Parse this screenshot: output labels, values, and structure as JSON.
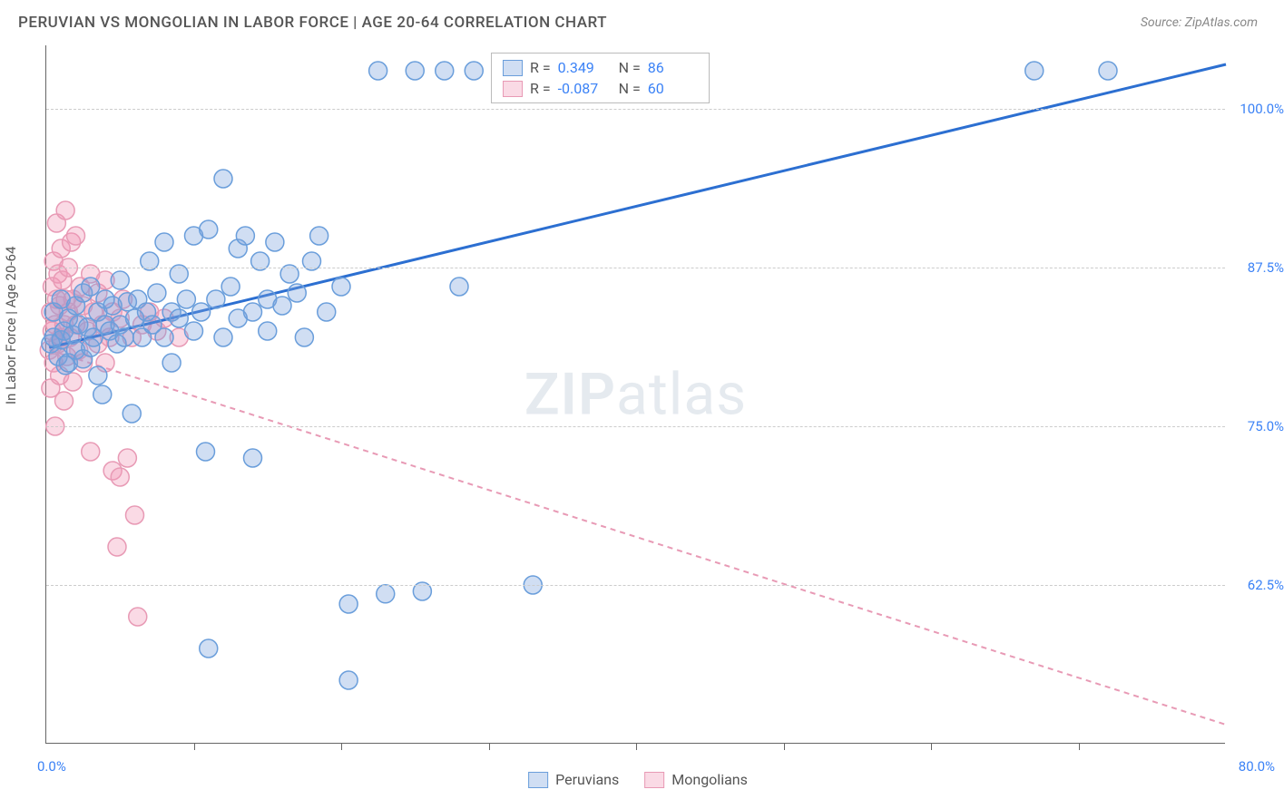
{
  "title": "PERUVIAN VS MONGOLIAN IN LABOR FORCE | AGE 20-64 CORRELATION CHART",
  "source": "Source: ZipAtlas.com",
  "axis_title_y": "In Labor Force | Age 20-64",
  "watermark": {
    "bold": "ZIP",
    "rest": "atlas"
  },
  "chart": {
    "type": "scatter",
    "background_color": "#ffffff",
    "grid_color": "#cccccc",
    "axis_color": "#666666",
    "xlim": [
      0,
      80
    ],
    "ylim": [
      50,
      105
    ],
    "x_label_min": "0.0%",
    "x_label_max": "80.0%",
    "x_ticks": [
      10,
      20,
      30,
      40,
      50,
      60,
      70
    ],
    "y_gridlines": [
      {
        "v": 62.5,
        "label": "62.5%"
      },
      {
        "v": 75.0,
        "label": "75.0%"
      },
      {
        "v": 87.5,
        "label": "87.5%"
      },
      {
        "v": 100.0,
        "label": "100.0%"
      }
    ],
    "marker_radius": 10,
    "marker_stroke_width": 1.5,
    "series": [
      {
        "name": "Peruvians",
        "fill": "rgba(120,160,220,0.35)",
        "stroke": "#6a9edb",
        "trend": {
          "color": "#2c6fd1",
          "width": 3,
          "dash": null,
          "x1": 0.2,
          "y1": 81.2,
          "x2": 80,
          "y2": 103.5
        },
        "stats": {
          "R": "0.349",
          "N": "86"
        },
        "points": [
          [
            0.3,
            81.5
          ],
          [
            0.5,
            82.0
          ],
          [
            0.5,
            84.0
          ],
          [
            0.8,
            80.5
          ],
          [
            1.0,
            81.8
          ],
          [
            1.0,
            85.0
          ],
          [
            1.2,
            82.5
          ],
          [
            1.3,
            79.8
          ],
          [
            1.5,
            83.5
          ],
          [
            1.5,
            80.0
          ],
          [
            1.8,
            82.2
          ],
          [
            2.0,
            84.5
          ],
          [
            2.0,
            81.0
          ],
          [
            2.2,
            83.0
          ],
          [
            2.5,
            85.5
          ],
          [
            2.5,
            80.3
          ],
          [
            2.8,
            82.8
          ],
          [
            3.0,
            86.0
          ],
          [
            3.0,
            81.2
          ],
          [
            3.2,
            82.0
          ],
          [
            3.5,
            84.0
          ],
          [
            3.5,
            79.0
          ],
          [
            3.8,
            77.5
          ],
          [
            4.0,
            83.0
          ],
          [
            4.0,
            85.0
          ],
          [
            4.3,
            82.5
          ],
          [
            4.5,
            84.5
          ],
          [
            4.8,
            81.5
          ],
          [
            5.0,
            86.5
          ],
          [
            5.0,
            83.0
          ],
          [
            5.3,
            82.0
          ],
          [
            5.5,
            84.8
          ],
          [
            5.8,
            76.0
          ],
          [
            6.0,
            83.5
          ],
          [
            6.2,
            85.0
          ],
          [
            6.5,
            82.0
          ],
          [
            6.8,
            84.0
          ],
          [
            7.0,
            88.0
          ],
          [
            7.2,
            83.0
          ],
          [
            7.5,
            85.5
          ],
          [
            8.0,
            82.0
          ],
          [
            8.0,
            89.5
          ],
          [
            8.5,
            84.0
          ],
          [
            8.5,
            80.0
          ],
          [
            9.0,
            87.0
          ],
          [
            9.0,
            83.5
          ],
          [
            9.5,
            85.0
          ],
          [
            10.0,
            82.5
          ],
          [
            10.0,
            90.0
          ],
          [
            10.5,
            84.0
          ],
          [
            10.8,
            73.0
          ],
          [
            11.0,
            57.5
          ],
          [
            11.0,
            90.5
          ],
          [
            11.5,
            85.0
          ],
          [
            12.0,
            82.0
          ],
          [
            12.0,
            94.5
          ],
          [
            12.5,
            86.0
          ],
          [
            13.0,
            83.5
          ],
          [
            13.0,
            89.0
          ],
          [
            13.5,
            90.0
          ],
          [
            14.0,
            84.0
          ],
          [
            14.0,
            72.5
          ],
          [
            14.5,
            88.0
          ],
          [
            15.0,
            85.0
          ],
          [
            15.0,
            82.5
          ],
          [
            15.5,
            89.5
          ],
          [
            16.0,
            84.5
          ],
          [
            16.5,
            87.0
          ],
          [
            17.0,
            85.5
          ],
          [
            17.5,
            82.0
          ],
          [
            18.0,
            88.0
          ],
          [
            18.5,
            90.0
          ],
          [
            19.0,
            84.0
          ],
          [
            20.0,
            86.0
          ],
          [
            20.5,
            61.0
          ],
          [
            20.5,
            55.0
          ],
          [
            22.5,
            103.0
          ],
          [
            23.0,
            61.8
          ],
          [
            25.0,
            103.0
          ],
          [
            25.5,
            62.0
          ],
          [
            27.0,
            103.0
          ],
          [
            28.0,
            86.0
          ],
          [
            29.0,
            103.0
          ],
          [
            33.0,
            62.5
          ],
          [
            67.0,
            103.0
          ],
          [
            72.0,
            103.0
          ]
        ]
      },
      {
        "name": "Mongolians",
        "fill": "rgba(240,150,180,0.35)",
        "stroke": "#e89ab5",
        "trend": {
          "color": "#e89ab5",
          "width": 2,
          "dash": "6,5",
          "x1": 0.2,
          "y1": 81.0,
          "x2": 80,
          "y2": 51.5
        },
        "stats": {
          "R": "-0.087",
          "N": "60"
        },
        "points": [
          [
            0.2,
            81.0
          ],
          [
            0.3,
            84.0
          ],
          [
            0.3,
            78.0
          ],
          [
            0.4,
            82.5
          ],
          [
            0.4,
            86.0
          ],
          [
            0.5,
            80.0
          ],
          [
            0.5,
            88.0
          ],
          [
            0.6,
            83.0
          ],
          [
            0.6,
            75.0
          ],
          [
            0.7,
            85.0
          ],
          [
            0.7,
            91.0
          ],
          [
            0.8,
            81.5
          ],
          [
            0.8,
            87.0
          ],
          [
            0.9,
            79.0
          ],
          [
            0.9,
            84.5
          ],
          [
            1.0,
            82.0
          ],
          [
            1.0,
            89.0
          ],
          [
            1.1,
            86.5
          ],
          [
            1.2,
            83.0
          ],
          [
            1.2,
            77.0
          ],
          [
            1.3,
            85.0
          ],
          [
            1.3,
            92.0
          ],
          [
            1.4,
            80.5
          ],
          [
            1.5,
            84.0
          ],
          [
            1.5,
            87.5
          ],
          [
            1.6,
            82.0
          ],
          [
            1.7,
            89.5
          ],
          [
            1.8,
            85.0
          ],
          [
            1.8,
            78.5
          ],
          [
            2.0,
            83.0
          ],
          [
            2.0,
            90.0
          ],
          [
            2.2,
            81.0
          ],
          [
            2.3,
            86.0
          ],
          [
            2.5,
            84.5
          ],
          [
            2.5,
            80.0
          ],
          [
            2.8,
            82.5
          ],
          [
            3.0,
            87.0
          ],
          [
            3.0,
            73.0
          ],
          [
            3.2,
            84.0
          ],
          [
            3.5,
            81.5
          ],
          [
            3.5,
            85.5
          ],
          [
            3.8,
            83.0
          ],
          [
            4.0,
            80.0
          ],
          [
            4.0,
            86.5
          ],
          [
            4.3,
            82.0
          ],
          [
            4.5,
            84.0
          ],
          [
            4.5,
            71.5
          ],
          [
            4.8,
            65.5
          ],
          [
            5.0,
            83.5
          ],
          [
            5.0,
            71.0
          ],
          [
            5.2,
            85.0
          ],
          [
            5.5,
            72.5
          ],
          [
            5.8,
            82.0
          ],
          [
            6.0,
            68.0
          ],
          [
            6.2,
            60.0
          ],
          [
            6.5,
            83.0
          ],
          [
            7.0,
            84.0
          ],
          [
            7.5,
            82.5
          ],
          [
            8.0,
            83.5
          ],
          [
            9.0,
            82.0
          ]
        ]
      }
    ],
    "bottom_legend": [
      {
        "label": "Peruvians",
        "fill": "rgba(120,160,220,0.35)",
        "stroke": "#6a9edb"
      },
      {
        "label": "Mongolians",
        "fill": "rgba(240,150,180,0.35)",
        "stroke": "#e89ab5"
      }
    ]
  }
}
